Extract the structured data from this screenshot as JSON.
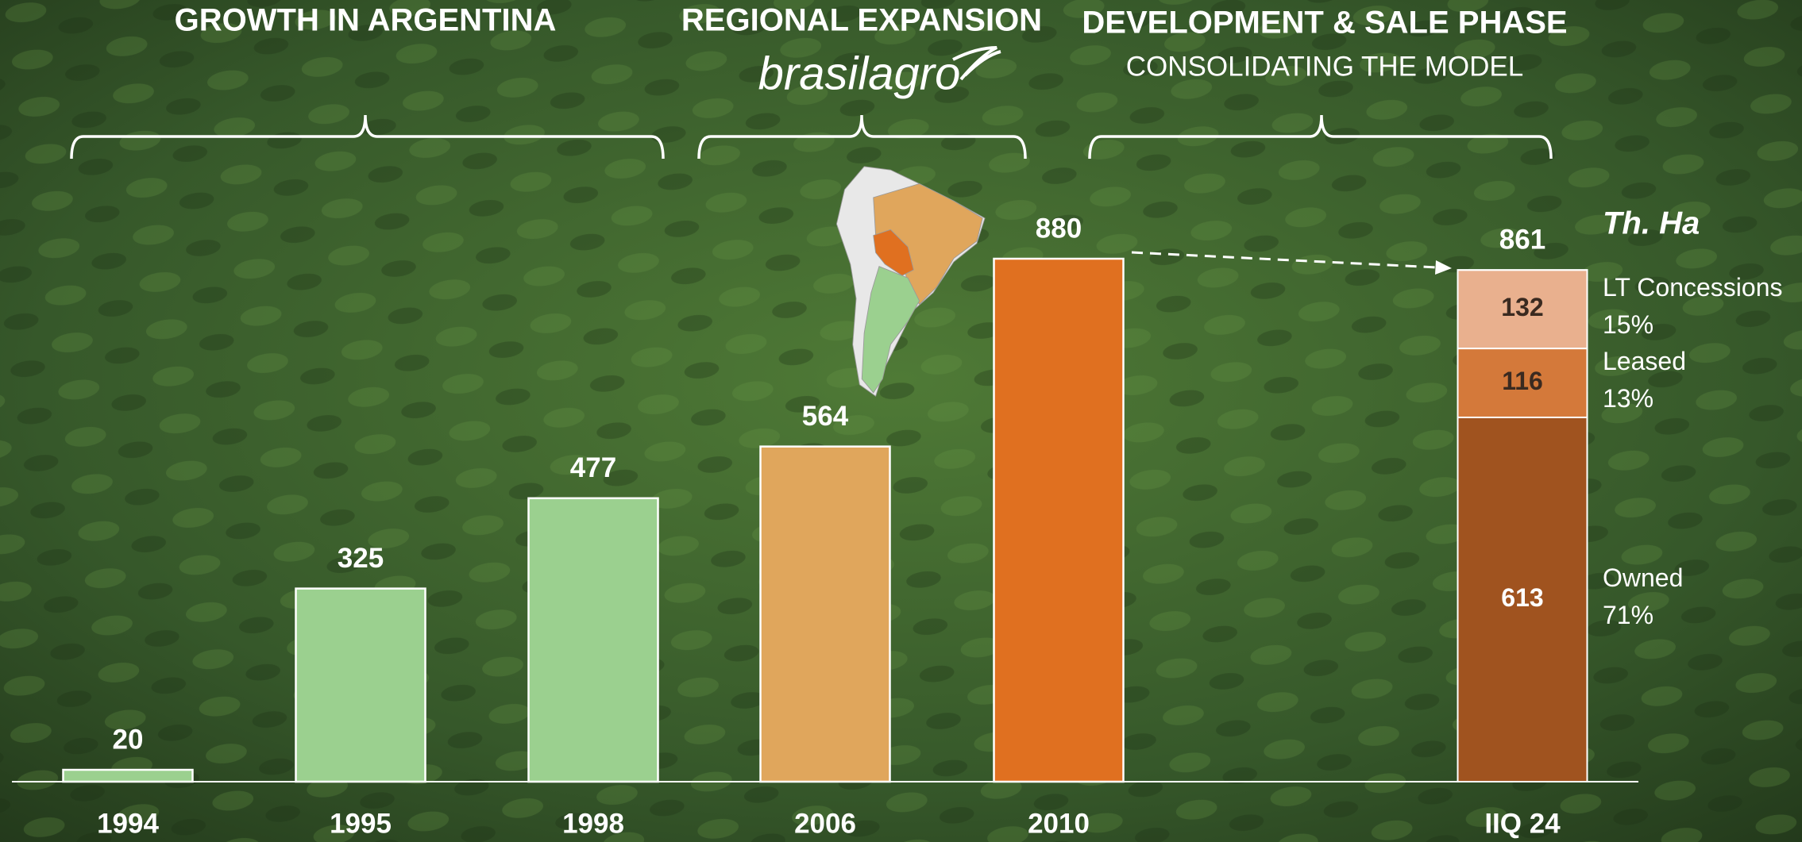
{
  "chart_data": {
    "type": "bar",
    "phases": [
      {
        "title": "GROWTH IN ARGENTINA"
      },
      {
        "title": "REGIONAL EXPANSION",
        "logo": "brasilagro"
      },
      {
        "title": "DEVELOPMENT & SALE PHASE",
        "subtitle": "CONSOLIDATING THE MODEL"
      }
    ],
    "unit": "Th. Ha",
    "categories": [
      "1994",
      "1995",
      "1998",
      "2006",
      "2010",
      "IIQ 24"
    ],
    "values": [
      20,
      325,
      477,
      564,
      880,
      861
    ],
    "colors": [
      "#9bd08f",
      "#9bd08f",
      "#9bd08f",
      "#e0a65c",
      "#e07020",
      "#ffffff"
    ],
    "series": [
      {
        "name": "Owned",
        "color": "#a0531f",
        "share": 71,
        "share_label": "71%",
        "values": [
          null,
          null,
          null,
          null,
          null,
          613
        ]
      },
      {
        "name": "Leased",
        "color": "#d4793a",
        "share": 13,
        "share_label": "13%",
        "values": [
          null,
          null,
          null,
          null,
          null,
          116
        ]
      },
      {
        "name": "LT Concessions",
        "color": "#e9b08e",
        "share": 15,
        "share_label": "15%",
        "values": [
          null,
          null,
          null,
          null,
          null,
          132
        ]
      }
    ]
  }
}
